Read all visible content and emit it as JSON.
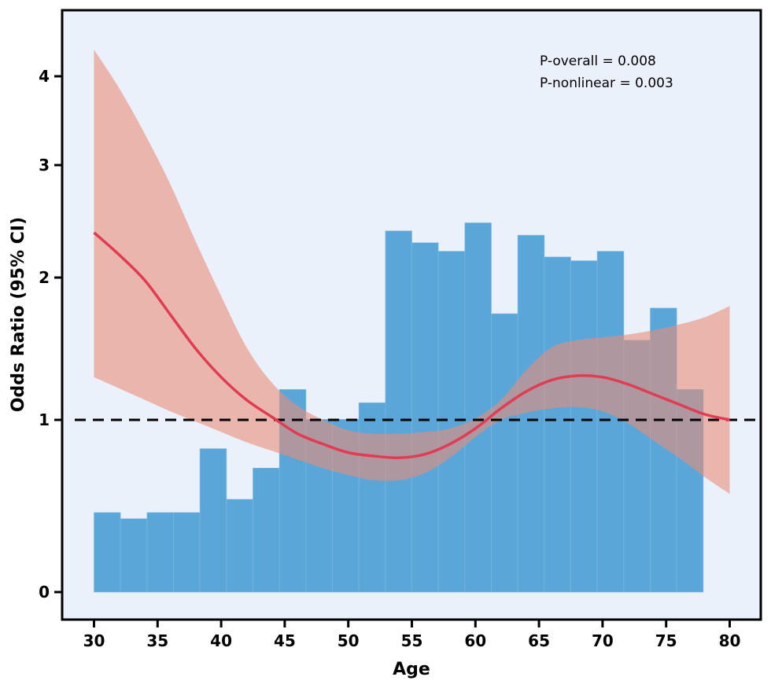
{
  "chart_data": {
    "type": "line",
    "title": "",
    "xlabel": "Age",
    "ylabel": "Odds Ratio (95% CI)",
    "xlim": [
      27.5,
      80.5
    ],
    "x_ticks": [
      30,
      35,
      40,
      45,
      50,
      55,
      60,
      65,
      70,
      75,
      80
    ],
    "y_ticks": [
      0,
      1,
      2,
      3,
      4
    ],
    "annotations": [
      "P-overall = 0.008",
      "P-nonlinear = 0.003"
    ],
    "reference_line": {
      "y": 1,
      "style": "dashed"
    },
    "colors": {
      "background": "#EBF1FA",
      "histogram": "#5BA6D9",
      "ci_band": "#E88D78",
      "curve": "#E03C54"
    },
    "histogram": {
      "bin_edges": [
        30,
        32.08,
        34.17,
        36.25,
        38.33,
        40.42,
        42.5,
        44.58,
        46.67,
        48.75,
        50.83,
        52.92,
        55,
        57.08,
        59.17,
        61.25,
        63.33,
        65.42,
        67.5,
        69.58,
        71.67,
        73.75,
        75.83,
        77.92
      ],
      "relative_heights": [
        0.168,
        0.155,
        0.168,
        0.168,
        0.303,
        0.196,
        0.262,
        0.428,
        0.365,
        0.365,
        0.4,
        0.763,
        0.738,
        0.72,
        0.78,
        0.588,
        0.754,
        0.708,
        0.7,
        0.72,
        0.532,
        0.6,
        0.428
      ]
    },
    "series": [
      {
        "x": [
          30,
          32,
          34,
          36,
          38,
          40,
          42,
          44,
          46,
          48,
          50,
          52,
          54,
          56,
          58,
          60,
          62,
          64,
          66,
          68,
          70,
          72,
          74,
          76,
          78,
          80
        ],
        "y": [
          2.4,
          2.2,
          1.98,
          1.74,
          1.5,
          1.3,
          1.14,
          1.02,
          0.92,
          0.86,
          0.81,
          0.79,
          0.78,
          0.8,
          0.86,
          0.95,
          1.08,
          1.2,
          1.28,
          1.31,
          1.3,
          1.25,
          1.18,
          1.11,
          1.04,
          1.0
        ],
        "lower": [
          1.3,
          1.22,
          1.14,
          1.06,
          0.99,
          0.93,
          0.87,
          0.82,
          0.77,
          0.72,
          0.68,
          0.65,
          0.65,
          0.69,
          0.78,
          0.9,
          1.0,
          1.05,
          1.08,
          1.09,
          1.06,
          0.98,
          0.88,
          0.78,
          0.67,
          0.57
        ],
        "upper": [
          4.3,
          3.86,
          3.35,
          2.83,
          2.32,
          1.87,
          1.51,
          1.26,
          1.1,
          1.0,
          0.94,
          0.92,
          0.92,
          0.93,
          0.95,
          1.01,
          1.14,
          1.35,
          1.51,
          1.56,
          1.58,
          1.6,
          1.63,
          1.67,
          1.72,
          1.8
        ]
      }
    ]
  }
}
